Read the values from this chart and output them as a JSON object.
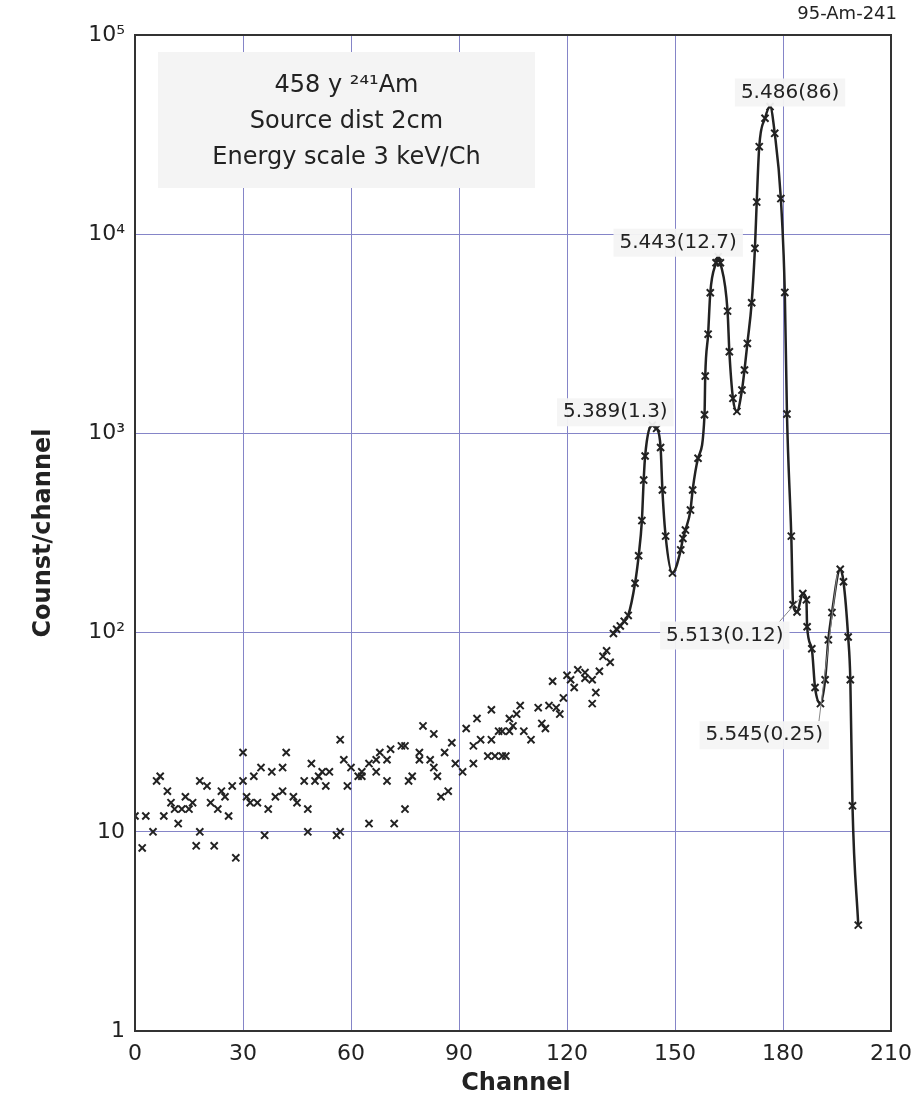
{
  "chart_data": {
    "type": "scatter",
    "title": "95-Am-241",
    "xlabel": "Channel",
    "ylabel": "Counst/channel",
    "annotations": [
      "458 y  ²⁴¹Am",
      "Source dist 2cm",
      "Energy scale 3 keV/Ch",
      {
        "text": "5.486(86)",
        "x": 176.4,
        "y": 43700
      },
      {
        "text": "5.443(12.7)",
        "x": 162.0,
        "y": 7710
      },
      {
        "text": "5.389(1.3)",
        "x": 143.7,
        "y": 1100
      },
      {
        "text": "5.513(0.12)",
        "x": 185.5,
        "y": 157
      },
      {
        "text": "5.545(0.25)",
        "x": 195.9,
        "y": 208
      }
    ],
    "xlim": [
      0,
      210
    ],
    "xticks": [
      0,
      30,
      60,
      90,
      120,
      150,
      180,
      210
    ],
    "ylim": [
      1,
      100000
    ],
    "yticks": [
      1,
      10,
      {
        "value": 100,
        "label": "10²"
      },
      {
        "value": 1000,
        "label": "10³"
      },
      {
        "value": 10000,
        "label": "10⁴"
      },
      {
        "value": 100000,
        "label": "10⁵"
      }
    ],
    "log": "y",
    "grid": true,
    "series": [
      {
        "type": "scatter",
        "marker": "cross",
        "color": "#222222",
        "x": [
          0,
          3,
          2,
          5,
          6,
          7,
          8,
          9,
          10,
          11,
          12,
          13,
          14,
          15,
          16,
          17,
          18,
          18,
          20,
          21,
          22,
          23,
          24,
          25,
          26,
          27,
          28,
          30,
          30,
          31,
          32,
          33,
          34,
          35,
          36,
          37,
          38,
          39,
          41,
          41,
          42,
          44,
          45,
          47,
          48,
          48,
          49,
          50,
          51,
          52,
          53,
          54,
          56,
          57,
          57,
          58,
          59,
          60,
          62,
          63,
          63,
          65,
          65,
          67,
          67,
          68,
          70,
          70,
          72,
          71,
          74,
          75,
          75,
          76,
          77,
          79,
          79,
          80,
          82,
          83,
          83,
          84,
          85,
          86,
          87,
          88,
          89,
          91,
          92,
          94,
          94,
          95,
          96,
          98,
          99,
          99,
          100,
          101,
          102,
          102,
          103,
          104,
          104,
          105,
          106,
          107,
          108,
          110,
          112,
          113,
          114,
          115,
          116,
          117,
          118,
          119,
          120,
          121,
          122,
          123,
          125,
          125,
          127,
          127,
          128,
          129,
          130,
          131,
          132,
          132.9,
          133.8,
          134.8,
          135.9,
          137.0,
          138.9,
          139.9,
          140.8,
          141.3,
          141.7,
          143.7,
          144.9,
          146.0,
          146.5,
          147.4,
          149.3,
          151.6,
          152.2,
          152.9,
          154.3,
          154.9,
          156.4,
          158.2,
          158.4,
          159.2,
          159.8,
          161.4,
          162.0,
          162.6,
          164.6,
          165.1,
          166.1,
          167.2,
          168.6,
          169.3,
          170.1,
          171.3,
          172.2,
          172.7,
          173.4,
          175.0,
          176.4,
          177.7,
          179.4,
          180.5,
          181.1,
          182.3,
          182.8,
          183.9,
          185.5,
          186.5,
          186.7,
          188.0,
          188.9,
          190.4,
          191.7,
          192.6,
          193.6,
          195.9,
          196.8,
          198.1,
          198.7,
          199.3,
          200.9
        ],
        "values": [
          12,
          12,
          8.3,
          10,
          18,
          19,
          12,
          16,
          14,
          13,
          11,
          13,
          15,
          13,
          14,
          8.5,
          10,
          18,
          17,
          14,
          8.5,
          13,
          16,
          15,
          12,
          17,
          7.4,
          25,
          18,
          15,
          14,
          19,
          14,
          21,
          9.6,
          13,
          20,
          15,
          21,
          16,
          25,
          15,
          14,
          18,
          10,
          13,
          22,
          18,
          19,
          20,
          17,
          20,
          9.6,
          10,
          29,
          23,
          17,
          21,
          19,
          20,
          19,
          11,
          22,
          20,
          23,
          25,
          23,
          18,
          11,
          26,
          27,
          27,
          13,
          18,
          19,
          23,
          25,
          34,
          23,
          31,
          21,
          19,
          15,
          25,
          16,
          28,
          22,
          20,
          33,
          22,
          27,
          37,
          29,
          24,
          29,
          41,
          24,
          32,
          24,
          32,
          24,
          32,
          37,
          34,
          39,
          43,
          32,
          29,
          42,
          35,
          33,
          43,
          57,
          42,
          39,
          47,
          61,
          58,
          53,
          65,
          59,
          63,
          44,
          58,
          50,
          64,
          76,
          81,
          71,
          99,
          104,
          108,
          114,
          122,
          177,
          243,
          365,
          583,
          770,
          1100,
          1060,
          850,
          520,
          305,
          199,
          260,
          297,
          327,
          412,
          520,
          750,
          1240,
          1940,
          3150,
          5080,
          7190,
          7710,
          7190,
          4110,
          2570,
          1500,
          1290,
          1650,
          2080,
          2830,
          4530,
          8490,
          14500,
          27500,
          38200,
          43700,
          32100,
          15100,
          5100,
          1250,
          305,
          138,
          127,
          157,
          146,
          107,
          83,
          53,
          44,
          58,
          92,
          126,
          208,
          180,
          95,
          58,
          13.5,
          3.4
        ]
      },
      {
        "type": "line",
        "marker": "none",
        "color": "#222222",
        "x": [
          132.9,
          133.8,
          134.8,
          135.9,
          137.0,
          138.9,
          139.9,
          140.8,
          141.3,
          141.7,
          143.7,
          144.9,
          146.0,
          146.5,
          147.4,
          149.3,
          151.6,
          152.2,
          152.9,
          154.3,
          154.9,
          156.4,
          158.2,
          158.4,
          159.2,
          159.8,
          161.4,
          162.0,
          162.6,
          164.6,
          165.1,
          166.1,
          167.2,
          168.6,
          169.3,
          170.1,
          171.3,
          172.2,
          172.7,
          173.4,
          175.0,
          176.4,
          177.7,
          179.4,
          180.5,
          181.1,
          182.3,
          182.8,
          183.9,
          185.5,
          186.5,
          186.7,
          188.0,
          188.9,
          190.4,
          191.7,
          192.6,
          193.6,
          195.9,
          196.8,
          198.1,
          198.7,
          199.3,
          200.9
        ],
        "values": [
          99,
          104,
          108,
          114,
          122,
          177,
          243,
          365,
          583,
          770,
          1100,
          1060,
          850,
          520,
          305,
          199,
          260,
          297,
          327,
          412,
          520,
          750,
          1240,
          1940,
          3150,
          5080,
          7190,
          7710,
          7190,
          4110,
          2570,
          1500,
          1290,
          1650,
          2080,
          2830,
          4530,
          8490,
          14500,
          27500,
          38200,
          43700,
          32100,
          15100,
          5100,
          1250,
          305,
          138,
          127,
          157,
          146,
          107,
          83,
          53,
          44,
          58,
          92,
          126,
          208,
          180,
          95,
          58,
          13.5,
          3.4
        ]
      }
    ]
  }
}
